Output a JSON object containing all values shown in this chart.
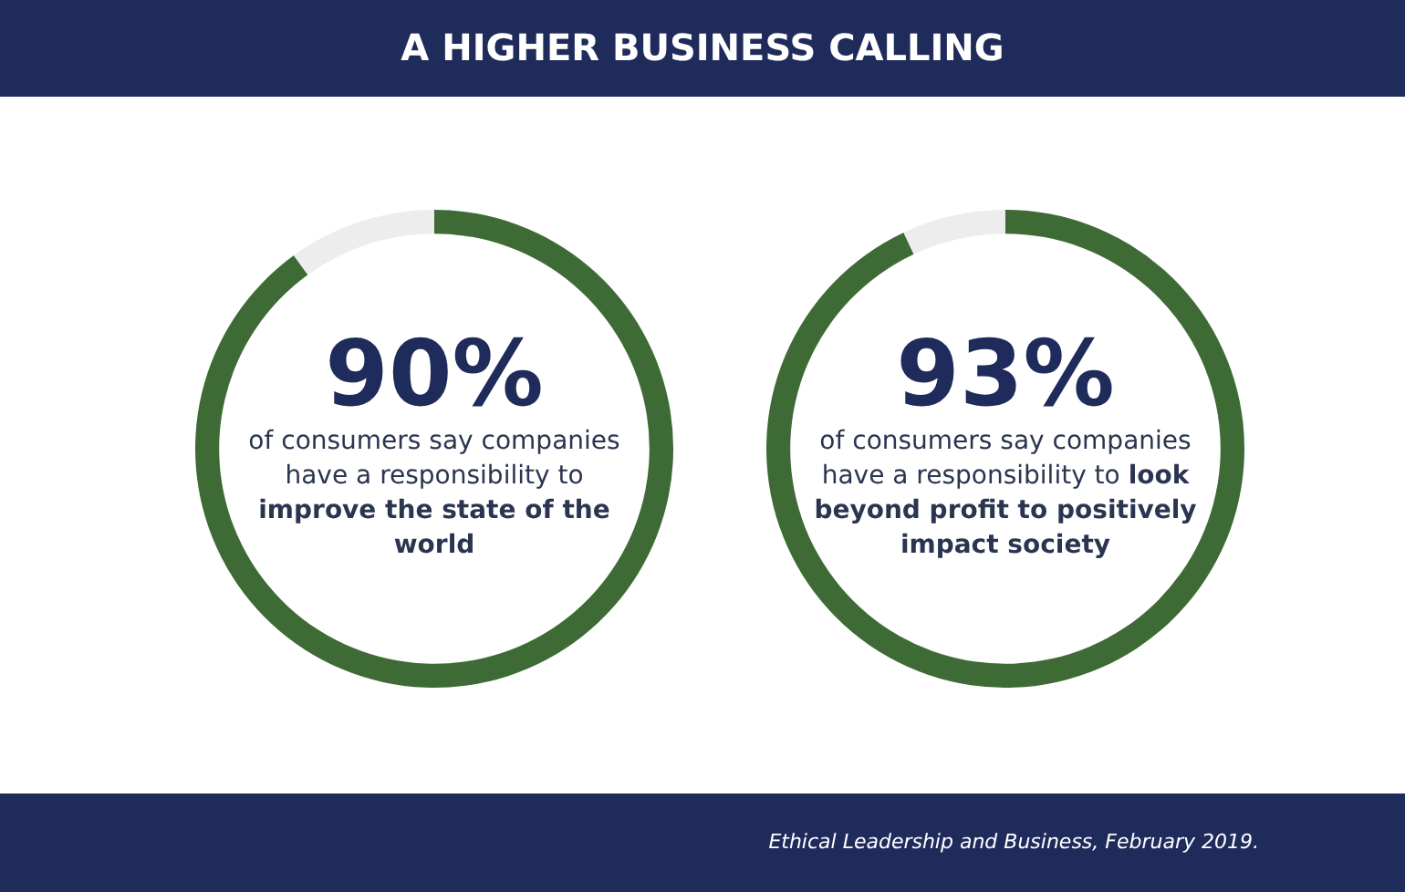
{
  "chart_data": [
    {
      "type": "donut",
      "title": "A HIGHER BUSINESS CALLING",
      "categories": [
        null,
        null
      ],
      "values": [
        90,
        10
      ],
      "colors": [
        "#3e6b35",
        "#ededed"
      ],
      "value_labels": [
        "90%",
        null
      ],
      "legend": false,
      "annotations": [
        "of consumers say companies have a responsibility to",
        "improve the state of the world"
      ]
    },
    {
      "type": "donut",
      "categories": [
        null,
        null
      ],
      "values": [
        93,
        7
      ],
      "colors": [
        "#3e6b35",
        "#ededed"
      ],
      "value_labels": [
        "93%",
        null
      ],
      "legend": false,
      "annotations": [
        "of consumers say companies have a responsibility to",
        "look beyond profit to positively impact society",
        "Ethical Leadership and Business, February 2019."
      ]
    }
  ]
}
